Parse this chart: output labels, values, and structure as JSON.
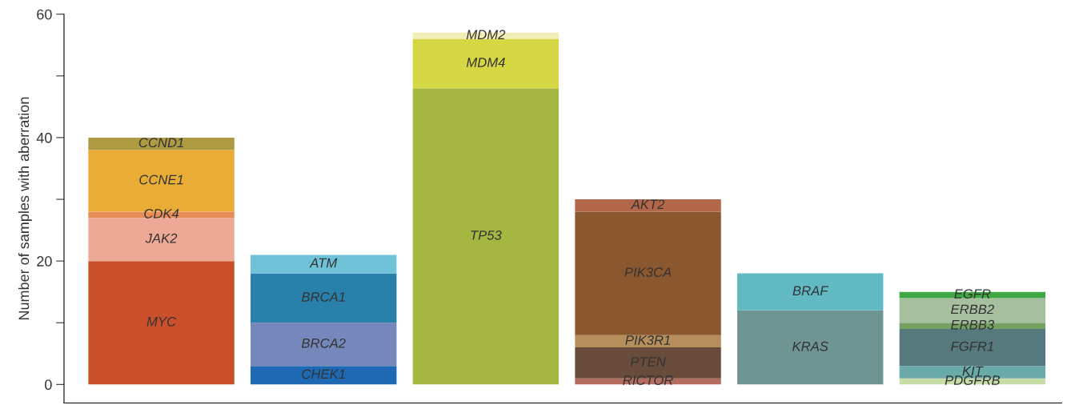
{
  "chart_data": {
    "type": "bar",
    "stacked": true,
    "ylabel": "Number of samples with aberration",
    "categories": [
      null,
      null,
      null,
      null,
      null,
      null
    ],
    "ylim": [
      -3,
      60
    ],
    "yticks": [
      0,
      {
        "value": 10,
        "label": null
      },
      20,
      {
        "value": 30,
        "label": null
      },
      40,
      {
        "value": 50,
        "label": null
      },
      60
    ],
    "grid": false,
    "legend": false,
    "series": [
      {
        "name": "MYC",
        "color": "#c9502a",
        "values": [
          20,
          null,
          null,
          null,
          null,
          null
        ]
      },
      {
        "name": "JAK2",
        "color": "#eea896",
        "values": [
          7,
          null,
          null,
          null,
          null,
          null
        ]
      },
      {
        "name": "CDK4",
        "color": "#e98d58",
        "values": [
          1,
          null,
          null,
          null,
          null,
          null
        ]
      },
      {
        "name": "CCNE1",
        "color": "#e9ac37",
        "values": [
          10,
          null,
          null,
          null,
          null,
          null
        ]
      },
      {
        "name": "CCND1",
        "color": "#ad9a42",
        "values": [
          2,
          null,
          null,
          null,
          null,
          null
        ]
      },
      {
        "name": "CHEK1",
        "color": "#1d69b4",
        "values": [
          null,
          3,
          null,
          null,
          null,
          null
        ]
      },
      {
        "name": "BRCA2",
        "color": "#7587bb",
        "values": [
          null,
          7,
          null,
          null,
          null,
          null
        ]
      },
      {
        "name": "BRCA1",
        "color": "#2980aa",
        "values": [
          null,
          8,
          null,
          null,
          null,
          null
        ]
      },
      {
        "name": "ATM",
        "color": "#70c2d8",
        "values": [
          null,
          3,
          null,
          null,
          null,
          null
        ]
      },
      {
        "name": "TP53",
        "color": "#a6b741",
        "values": [
          null,
          null,
          48,
          null,
          null,
          null
        ]
      },
      {
        "name": "MDM4",
        "color": "#d6d843",
        "values": [
          null,
          null,
          8,
          null,
          null,
          null
        ]
      },
      {
        "name": "MDM2",
        "color": "#f1eeb5",
        "values": [
          null,
          null,
          1,
          null,
          null,
          null
        ]
      },
      {
        "name": "RICTOR",
        "color": "#b36c5e",
        "values": [
          null,
          null,
          null,
          1,
          null,
          null
        ]
      },
      {
        "name": "PTEN",
        "color": "#684b3a",
        "values": [
          null,
          null,
          null,
          5,
          null,
          null
        ]
      },
      {
        "name": "PIK3R1",
        "color": "#b68e5b",
        "values": [
          null,
          null,
          null,
          2,
          null,
          null
        ]
      },
      {
        "name": "PIK3CA",
        "color": "#8b572f",
        "values": [
          null,
          null,
          null,
          20,
          null,
          null
        ]
      },
      {
        "name": "AKT2",
        "color": "#b3674a",
        "values": [
          null,
          null,
          null,
          2,
          null,
          null
        ]
      },
      {
        "name": "KRAS",
        "color": "#6e9592",
        "values": [
          null,
          null,
          null,
          null,
          12,
          null
        ]
      },
      {
        "name": "BRAF",
        "color": "#61b9c3",
        "values": [
          null,
          null,
          null,
          null,
          6,
          null
        ]
      },
      {
        "name": "PDGFRB",
        "color": "#c8dda5",
        "values": [
          null,
          null,
          null,
          null,
          null,
          1
        ]
      },
      {
        "name": "KIT",
        "color": "#6aaaa9",
        "values": [
          null,
          null,
          null,
          null,
          null,
          2
        ]
      },
      {
        "name": "FGFR1",
        "color": "#55797d",
        "values": [
          null,
          null,
          null,
          null,
          null,
          6
        ]
      },
      {
        "name": "ERBB3",
        "color": "#74a062",
        "values": [
          null,
          null,
          null,
          null,
          null,
          1
        ]
      },
      {
        "name": "ERBB2",
        "color": "#a6bf9f",
        "values": [
          null,
          null,
          null,
          null,
          null,
          4
        ]
      },
      {
        "name": "EGFR",
        "color": "#3fa845",
        "values": [
          null,
          null,
          null,
          null,
          null,
          1
        ]
      }
    ]
  }
}
